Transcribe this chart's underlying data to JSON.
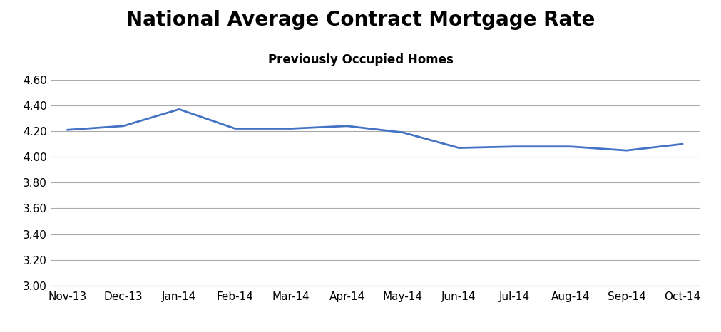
{
  "title": "National Average Contract Mortgage Rate",
  "subtitle": "Previously Occupied Homes",
  "x_labels": [
    "Nov-13",
    "Dec-13",
    "Jan-14",
    "Feb-14",
    "Mar-14",
    "Apr-14",
    "May-14",
    "Jun-14",
    "Jul-14",
    "Aug-14",
    "Sep-14",
    "Oct-14"
  ],
  "y_values": [
    4.21,
    4.24,
    4.37,
    4.22,
    4.22,
    4.24,
    4.19,
    4.07,
    4.08,
    4.08,
    4.05,
    4.1
  ],
  "ylim": [
    3.0,
    4.6
  ],
  "yticks": [
    3.0,
    3.2,
    3.4,
    3.6,
    3.8,
    4.0,
    4.2,
    4.4,
    4.6
  ],
  "line_color": "#4472C4",
  "line_width": 2.0,
  "background_color": "#ffffff",
  "grid_color": "#aaaaaa",
  "title_fontsize": 20,
  "subtitle_fontsize": 12,
  "tick_fontsize": 11
}
